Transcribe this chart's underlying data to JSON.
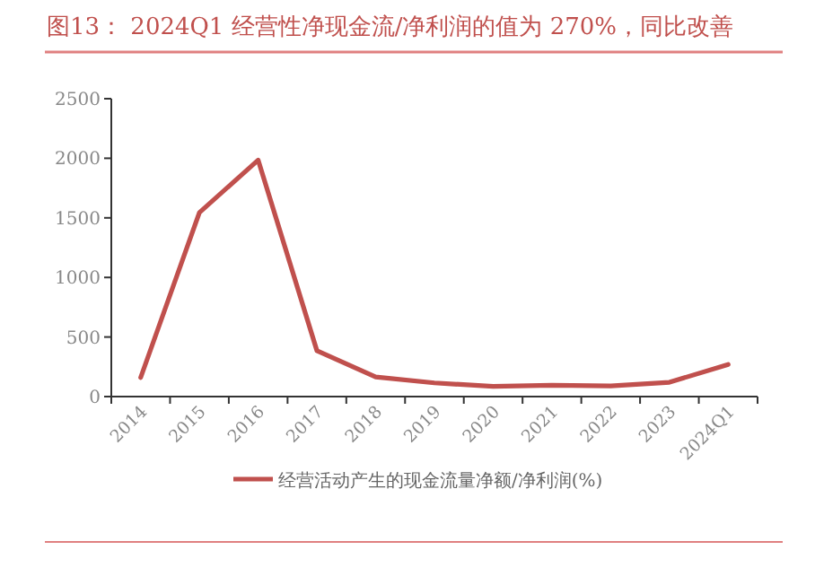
{
  "chart_data": {
    "type": "line",
    "title": "图13：  2024Q1 经营性净现金流/净利润的值为 270%，同比改善",
    "categories": [
      "2014",
      "2015",
      "2016",
      "2017",
      "2018",
      "2019",
      "2020",
      "2021",
      "2022",
      "2023",
      "2024Q1"
    ],
    "series": [
      {
        "name": "经营活动产生的现金流量净额/净利润(%)",
        "color": "#c0504d",
        "values": [
          160,
          1545,
          1985,
          385,
          165,
          115,
          85,
          95,
          90,
          120,
          270
        ]
      }
    ],
    "ylim": [
      0,
      2500
    ],
    "yticks": [
      0,
      500,
      1000,
      1500,
      2000,
      2500
    ],
    "grid": false,
    "legend": "bottom",
    "marker": "none",
    "line_style": "solid"
  }
}
